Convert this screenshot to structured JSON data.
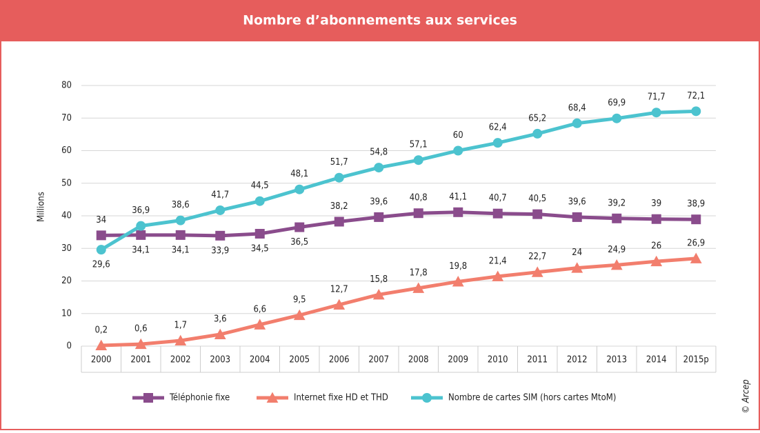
{
  "chart_data": {
    "type": "line",
    "title": "Nombre d’abonnements aux services",
    "y_label": "Millions",
    "source": "© Arcep",
    "categories": [
      "2000",
      "2001",
      "2002",
      "2003",
      "2004",
      "2005",
      "2006",
      "2007",
      "2008",
      "2009",
      "2010",
      "2011",
      "2012",
      "2013",
      "2014",
      "2015p"
    ],
    "series": [
      {
        "name": "Téléphonie fixe",
        "color": "#8a4c8c",
        "marker": "square",
        "values": [
          34,
          34.1,
          34.1,
          33.9,
          34.5,
          36.5,
          38.2,
          39.6,
          40.8,
          41.1,
          40.7,
          40.5,
          39.6,
          39.2,
          39,
          38.9
        ],
        "value_labels": [
          "34",
          "34,1",
          "34,1",
          "33,9",
          "34,5",
          "36,5",
          "38,2",
          "39,6",
          "40,8",
          "41,1",
          "40,7",
          "40,5",
          "39,6",
          "39,2",
          "39",
          "38,9"
        ]
      },
      {
        "name": "Internet fixe HD et THD",
        "color": "#f27e6d",
        "marker": "triangle",
        "values": [
          0.2,
          0.6,
          1.7,
          3.6,
          6.6,
          9.5,
          12.7,
          15.8,
          17.8,
          19.8,
          21.4,
          22.7,
          24,
          24.9,
          26,
          26.9
        ],
        "value_labels": [
          "0,2",
          "0,6",
          "1,7",
          "3,6",
          "6,6",
          "9,5",
          "12,7",
          "15,8",
          "17,8",
          "19,8",
          "21,4",
          "22,7",
          "24",
          "24,9",
          "26",
          "26,9"
        ]
      },
      {
        "name": "Nombre de cartes SIM (hors cartes MtoM)",
        "color": "#4cc3cf",
        "marker": "circle",
        "values": [
          29.6,
          36.9,
          38.6,
          41.7,
          44.5,
          48.1,
          51.7,
          54.8,
          57.1,
          60,
          62.4,
          65.2,
          68.4,
          69.9,
          71.7,
          72.1
        ],
        "value_labels": [
          "29,6",
          "36,9",
          "38,6",
          "41,7",
          "44,5",
          "48,1",
          "51,7",
          "54,8",
          "57,1",
          "60",
          "62,4",
          "65,2",
          "68,4",
          "69,9",
          "71,7",
          "72,1"
        ]
      }
    ],
    "ylim": [
      0,
      80
    ],
    "yticks": [
      0,
      10,
      20,
      30,
      40,
      50,
      60,
      70,
      80
    ],
    "grid": true,
    "legend": "bottom"
  }
}
